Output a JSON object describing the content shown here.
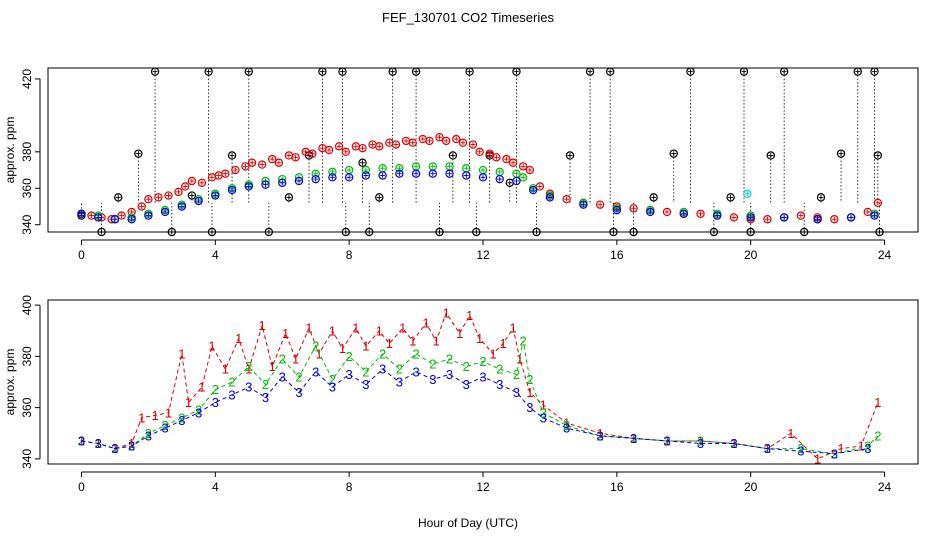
{
  "chart_data": [
    {
      "type": "scatter",
      "panel": "top",
      "title": "FEF_130701  CO2 Timeseries",
      "xlabel": "",
      "ylabel": "approx. ppm",
      "xlim": [
        -1,
        25
      ],
      "ylim": [
        336,
        426
      ],
      "xticks": [
        "0",
        "4",
        "8",
        "12",
        "16",
        "20",
        "24"
      ],
      "yticks": [
        "340",
        "360",
        "380",
        "420"
      ],
      "yticks_at": [
        340,
        360,
        380,
        420
      ],
      "grid": false,
      "legend": "none",
      "series": [
        {
          "name": "black",
          "color": "#000000",
          "x": [
            0.0,
            0.6,
            1.1,
            1.7,
            2.2,
            2.7,
            3.3,
            3.8,
            3.9,
            4.5,
            5.0,
            5.6,
            6.2,
            6.8,
            7.2,
            7.8,
            7.9,
            8.4,
            8.6,
            8.9,
            9.3,
            10.0,
            10.7,
            11.1,
            11.6,
            11.8,
            12.2,
            12.8,
            13.0,
            13.6,
            14.6,
            15.2,
            15.8,
            15.9,
            16.5,
            17.1,
            17.7,
            18.2,
            18.9,
            19.4,
            19.8,
            20.0,
            20.6,
            21.0,
            21.6,
            22.1,
            22.7,
            23.2,
            23.7,
            23.8,
            23.85
          ],
          "y": [
            345,
            336,
            355,
            379,
            424,
            336,
            356,
            424,
            336,
            378,
            424,
            336,
            355,
            378,
            424,
            424,
            336,
            374,
            336,
            355,
            424,
            424,
            336,
            378,
            424,
            336,
            378,
            363,
            424,
            336,
            378,
            424,
            424,
            336,
            336,
            355,
            379,
            424,
            336,
            355,
            424,
            336,
            378,
            424,
            336,
            355,
            379,
            424,
            424,
            378,
            336
          ]
        },
        {
          "name": "red",
          "color": "#dd0000",
          "x": [
            0.0,
            0.3,
            0.6,
            0.9,
            1.2,
            1.5,
            1.8,
            2.0,
            2.3,
            2.6,
            2.9,
            3.1,
            3.3,
            3.6,
            3.9,
            4.1,
            4.3,
            4.6,
            4.9,
            5.1,
            5.4,
            5.7,
            5.9,
            6.2,
            6.4,
            6.7,
            6.9,
            7.2,
            7.4,
            7.7,
            7.9,
            8.2,
            8.4,
            8.7,
            8.9,
            9.2,
            9.4,
            9.7,
            9.9,
            10.2,
            10.4,
            10.7,
            10.9,
            11.2,
            11.4,
            11.7,
            11.9,
            12.2,
            12.4,
            12.7,
            12.9,
            13.2,
            13.4,
            13.7,
            14.0,
            14.5,
            15.0,
            15.5,
            16.0,
            16.5,
            17.0,
            17.5,
            18.0,
            18.5,
            19.0,
            19.5,
            20.0,
            20.5,
            21.0,
            21.5,
            22.0,
            22.5,
            23.0,
            23.5,
            23.8
          ],
          "y": [
            346,
            345,
            344,
            343,
            345,
            347,
            350,
            354,
            355,
            356,
            358,
            361,
            364,
            363,
            366,
            367,
            368,
            370,
            372,
            374,
            373,
            376,
            374,
            378,
            377,
            380,
            379,
            382,
            381,
            383,
            380,
            383,
            382,
            384,
            383,
            385,
            384,
            386,
            385,
            387,
            386,
            388,
            386,
            387,
            385,
            384,
            380,
            379,
            377,
            376,
            374,
            372,
            370,
            361,
            357,
            354,
            352,
            351,
            350,
            349,
            348,
            347,
            346,
            346,
            345,
            344,
            343,
            343,
            344,
            345,
            344,
            343,
            344,
            347,
            352
          ]
        },
        {
          "name": "green",
          "color": "#00bb00",
          "x": [
            0.0,
            0.5,
            1.0,
            1.5,
            2.0,
            2.5,
            3.0,
            3.5,
            4.0,
            4.5,
            5.0,
            5.5,
            6.0,
            6.5,
            7.0,
            7.5,
            8.0,
            8.5,
            9.0,
            9.5,
            10.0,
            10.5,
            11.0,
            11.5,
            12.0,
            12.5,
            13.0,
            13.2,
            13.5,
            14.0,
            15.0,
            16.0,
            17.0,
            18.0,
            19.0,
            20.0,
            21.0,
            22.0,
            23.0,
            23.7
          ],
          "y": [
            346,
            345,
            343,
            344,
            346,
            348,
            351,
            354,
            357,
            360,
            362,
            364,
            365,
            366,
            368,
            369,
            370,
            370,
            371,
            371,
            372,
            372,
            372,
            371,
            370,
            369,
            368,
            366,
            360,
            356,
            352,
            349,
            348,
            347,
            346,
            345,
            344,
            343,
            344,
            346
          ]
        },
        {
          "name": "blue",
          "color": "#0000dd",
          "x": [
            0.0,
            0.5,
            1.0,
            1.5,
            2.0,
            2.5,
            3.0,
            3.5,
            4.0,
            4.5,
            5.0,
            5.5,
            6.0,
            6.5,
            7.0,
            7.5,
            8.0,
            8.5,
            9.0,
            9.5,
            10.0,
            10.5,
            11.0,
            11.5,
            12.0,
            12.5,
            13.0,
            13.5,
            14.0,
            15.0,
            16.0,
            17.0,
            18.0,
            19.0,
            20.0,
            21.0,
            22.0,
            23.0,
            23.7
          ],
          "y": [
            346,
            344,
            343,
            343,
            345,
            347,
            350,
            353,
            356,
            359,
            361,
            362,
            363,
            364,
            365,
            366,
            366,
            367,
            367,
            368,
            368,
            368,
            368,
            367,
            366,
            365,
            364,
            359,
            355,
            351,
            348,
            347,
            346,
            345,
            344,
            344,
            343,
            344,
            345
          ]
        },
        {
          "name": "cyan",
          "color": "#00cccc",
          "x": [
            19.9
          ],
          "y": [
            357
          ]
        }
      ]
    },
    {
      "type": "scatter",
      "panel": "bottom",
      "title": "",
      "xlabel": "Hour of Day (UTC)",
      "ylabel": "approx. ppm",
      "xlim": [
        -1,
        25
      ],
      "ylim": [
        338,
        402
      ],
      "xticks": [
        "0",
        "4",
        "8",
        "12",
        "16",
        "20",
        "24"
      ],
      "yticks": [
        "340",
        "360",
        "380",
        "400"
      ],
      "yticks_at": [
        340,
        360,
        380,
        400
      ],
      "grid": false,
      "legend": "none",
      "plot_characters": [
        "1",
        "2",
        "3"
      ],
      "series": [
        {
          "name": "1",
          "color": "#dd0000",
          "x": [
            0.0,
            0.5,
            1.0,
            1.5,
            1.8,
            2.2,
            2.6,
            3.0,
            3.2,
            3.6,
            3.9,
            4.3,
            4.7,
            5.0,
            5.4,
            5.7,
            6.1,
            6.4,
            6.8,
            7.1,
            7.5,
            7.8,
            8.2,
            8.5,
            8.9,
            9.2,
            9.6,
            9.9,
            10.3,
            10.6,
            10.9,
            11.3,
            11.6,
            11.9,
            12.3,
            12.6,
            12.9,
            13.1,
            13.4,
            13.8,
            14.5,
            15.5,
            16.5,
            17.5,
            18.5,
            19.5,
            20.5,
            21.2,
            22.0,
            22.7,
            23.3,
            23.8
          ],
          "y": [
            347,
            346,
            344,
            346,
            356,
            357,
            358,
            381,
            362,
            368,
            384,
            375,
            387,
            375,
            392,
            376,
            389,
            379,
            391,
            381,
            390,
            383,
            391,
            384,
            390,
            385,
            391,
            386,
            393,
            386,
            397,
            389,
            396,
            387,
            381,
            385,
            391,
            379,
            366,
            361,
            354,
            350,
            348,
            347,
            347,
            346,
            344,
            350,
            340,
            344,
            345,
            362
          ]
        },
        {
          "name": "2",
          "color": "#00bb00",
          "x": [
            0.0,
            0.5,
            1.0,
            1.5,
            2.0,
            2.5,
            3.0,
            3.5,
            4.0,
            4.5,
            5.0,
            5.5,
            6.0,
            6.5,
            7.0,
            7.5,
            8.0,
            8.5,
            9.0,
            9.5,
            10.0,
            10.5,
            11.0,
            11.5,
            12.0,
            12.5,
            13.0,
            13.2,
            13.4,
            13.8,
            14.5,
            15.5,
            16.5,
            17.5,
            18.5,
            19.5,
            20.5,
            21.5,
            22.5,
            23.5,
            23.8
          ],
          "y": [
            347,
            346,
            344,
            345,
            350,
            353,
            356,
            359,
            367,
            370,
            376,
            369,
            379,
            372,
            384,
            371,
            380,
            374,
            381,
            375,
            381,
            377,
            379,
            376,
            378,
            375,
            373,
            386,
            371,
            358,
            353,
            349,
            348,
            347,
            347,
            346,
            344,
            344,
            342,
            345,
            349
          ]
        },
        {
          "name": "3",
          "color": "#0000dd",
          "x": [
            0.0,
            0.5,
            1.0,
            1.5,
            2.0,
            2.5,
            3.0,
            3.5,
            4.0,
            4.5,
            5.0,
            5.5,
            6.0,
            6.5,
            7.0,
            7.5,
            8.0,
            8.5,
            9.0,
            9.5,
            10.0,
            10.5,
            11.0,
            11.5,
            12.0,
            12.5,
            13.0,
            13.4,
            13.8,
            14.5,
            15.5,
            16.5,
            17.5,
            18.5,
            19.5,
            20.5,
            21.5,
            22.5,
            23.5
          ],
          "y": [
            347,
            346,
            344,
            345,
            349,
            352,
            355,
            358,
            362,
            365,
            368,
            364,
            372,
            366,
            374,
            368,
            373,
            369,
            375,
            370,
            374,
            371,
            373,
            369,
            372,
            369,
            366,
            360,
            356,
            352,
            349,
            348,
            347,
            346,
            346,
            344,
            343,
            342,
            344
          ]
        }
      ]
    }
  ]
}
